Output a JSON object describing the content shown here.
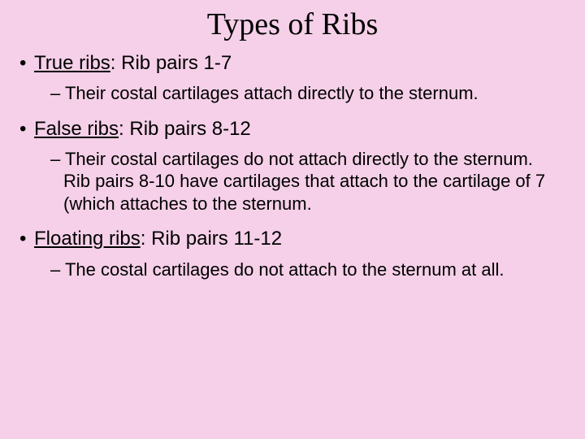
{
  "background_color": "#f5d0e8",
  "text_color": "#000000",
  "title": {
    "text": "Types of Ribs",
    "fontsize": 38,
    "font_family": "Times New Roman"
  },
  "body_fontsize_level1": 24,
  "body_fontsize_level2": 22,
  "items": [
    {
      "term": "True ribs",
      "rest": ": Rib pairs 1-7",
      "sub": "Their costal cartilages attach directly to the sternum."
    },
    {
      "term": "False ribs",
      "rest": ": Rib pairs 8-12",
      "sub": "Their costal cartilages do not attach directly to the sternum. Rib pairs 8-10 have cartilages that attach to the cartilage of 7 (which attaches to the sternum."
    },
    {
      "term": "Floating ribs",
      "rest": ": Rib pairs 11-12",
      "sub": "The costal cartilages do not attach to the sternum at all."
    }
  ],
  "bullet_marker": "•",
  "dash_marker": "–"
}
